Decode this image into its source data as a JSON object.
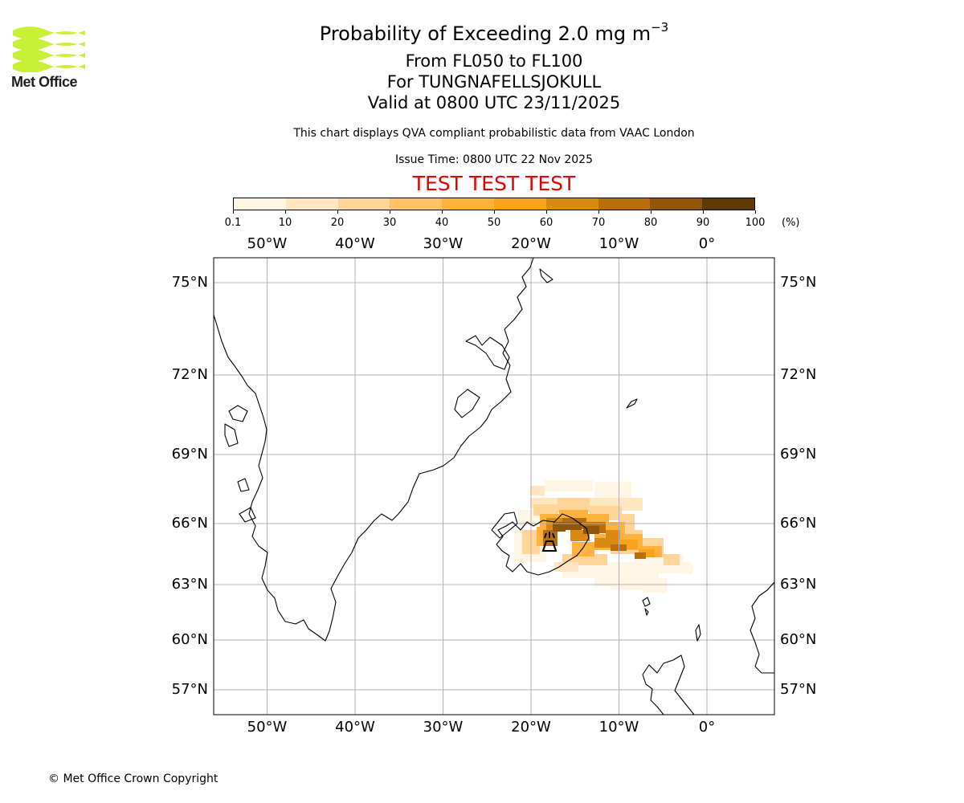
{
  "header": {
    "title_prefix": "Probability of Exceeding 2.0 mg m",
    "title_exponent": "−3",
    "flight_levels": "From FL050 to FL100",
    "volcano": "For TUNGNAFELLSJOKULL",
    "valid_time": "Valid at 0800 UTC 23/11/2025",
    "disclaimer": "This chart displays QVA compliant probabilistic data from VAAC London",
    "issue_time": "Issue Time: 0800 UTC 22 Nov 2025",
    "test_banner": "TEST TEST TEST"
  },
  "logo": {
    "text": "Met Office",
    "color": "#c8f035"
  },
  "colorbar": {
    "ticks": [
      "0.1",
      "10",
      "20",
      "30",
      "40",
      "50",
      "60",
      "70",
      "80",
      "90",
      "100"
    ],
    "unit": "(%)",
    "colors": [
      "#fff5e4",
      "#ffe6c0",
      "#ffd499",
      "#ffc266",
      "#ffb13d",
      "#f9a21c",
      "#d98a12",
      "#b86e0d",
      "#91560a",
      "#5e3a08"
    ]
  },
  "map": {
    "lon_labels": [
      "50°W",
      "40°W",
      "30°W",
      "20°W",
      "10°W",
      "0°"
    ],
    "lon_values": [
      -50,
      -40,
      -30,
      -20,
      -10,
      0
    ],
    "lat_labels": [
      "75°N",
      "72°N",
      "69°N",
      "66°N",
      "63°N",
      "60°N",
      "57°N"
    ],
    "lat_values": [
      75,
      72,
      69,
      66,
      63,
      60,
      57
    ],
    "volcano_marker": "volcano-icon"
  },
  "footer": {
    "copyright": "© Met Office Crown Copyright"
  }
}
